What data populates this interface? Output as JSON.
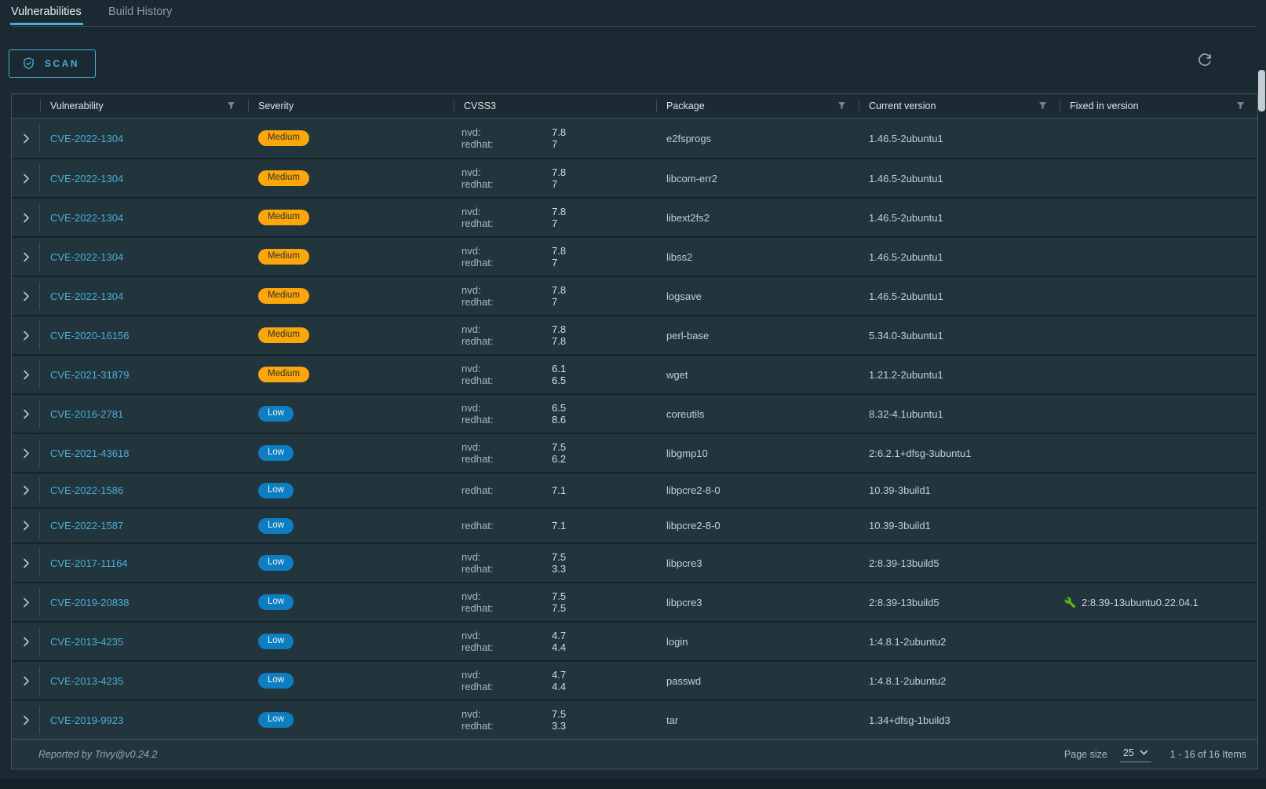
{
  "colors": {
    "accent": "#49afd9",
    "severity_medium": "#fba70b",
    "severity_low": "#0e7ec2",
    "fix_icon_green": "#5eb715"
  },
  "tabs": [
    {
      "label": "Vulnerabilities",
      "active": true
    },
    {
      "label": "Build History",
      "active": false
    }
  ],
  "toolbar": {
    "scan_label": "SCAN"
  },
  "table": {
    "columns": [
      {
        "label": "Vulnerability",
        "filter": true
      },
      {
        "label": "Severity",
        "filter": false
      },
      {
        "label": "CVSS3",
        "filter": false
      },
      {
        "label": "Package",
        "filter": true
      },
      {
        "label": "Current version",
        "filter": true
      },
      {
        "label": "Fixed in version",
        "filter": true
      }
    ],
    "rows": [
      {
        "cve": "CVE-2022-1304",
        "severity": "Medium",
        "cvss": [
          {
            "source": "nvd:",
            "score": "7.8"
          },
          {
            "source": "redhat:",
            "score": "7"
          }
        ],
        "package": "e2fsprogs",
        "current_version": "1.46.5-2ubuntu1",
        "fixed_in_version": ""
      },
      {
        "cve": "CVE-2022-1304",
        "severity": "Medium",
        "cvss": [
          {
            "source": "nvd:",
            "score": "7.8"
          },
          {
            "source": "redhat:",
            "score": "7"
          }
        ],
        "package": "libcom-err2",
        "current_version": "1.46.5-2ubuntu1",
        "fixed_in_version": ""
      },
      {
        "cve": "CVE-2022-1304",
        "severity": "Medium",
        "cvss": [
          {
            "source": "nvd:",
            "score": "7.8"
          },
          {
            "source": "redhat:",
            "score": "7"
          }
        ],
        "package": "libext2fs2",
        "current_version": "1.46.5-2ubuntu1",
        "fixed_in_version": ""
      },
      {
        "cve": "CVE-2022-1304",
        "severity": "Medium",
        "cvss": [
          {
            "source": "nvd:",
            "score": "7.8"
          },
          {
            "source": "redhat:",
            "score": "7"
          }
        ],
        "package": "libss2",
        "current_version": "1.46.5-2ubuntu1",
        "fixed_in_version": ""
      },
      {
        "cve": "CVE-2022-1304",
        "severity": "Medium",
        "cvss": [
          {
            "source": "nvd:",
            "score": "7.8"
          },
          {
            "source": "redhat:",
            "score": "7"
          }
        ],
        "package": "logsave",
        "current_version": "1.46.5-2ubuntu1",
        "fixed_in_version": ""
      },
      {
        "cve": "CVE-2020-16156",
        "severity": "Medium",
        "cvss": [
          {
            "source": "nvd:",
            "score": "7.8"
          },
          {
            "source": "redhat:",
            "score": "7.8"
          }
        ],
        "package": "perl-base",
        "current_version": "5.34.0-3ubuntu1",
        "fixed_in_version": ""
      },
      {
        "cve": "CVE-2021-31879",
        "severity": "Medium",
        "cvss": [
          {
            "source": "nvd:",
            "score": "6.1"
          },
          {
            "source": "redhat:",
            "score": "6.5"
          }
        ],
        "package": "wget",
        "current_version": "1.21.2-2ubuntu1",
        "fixed_in_version": ""
      },
      {
        "cve": "CVE-2016-2781",
        "severity": "Low",
        "cvss": [
          {
            "source": "nvd:",
            "score": "6.5"
          },
          {
            "source": "redhat:",
            "score": "8.6"
          }
        ],
        "package": "coreutils",
        "current_version": "8.32-4.1ubuntu1",
        "fixed_in_version": ""
      },
      {
        "cve": "CVE-2021-43618",
        "severity": "Low",
        "cvss": [
          {
            "source": "nvd:",
            "score": "7.5"
          },
          {
            "source": "redhat:",
            "score": "6.2"
          }
        ],
        "package": "libgmp10",
        "current_version": "2:6.2.1+dfsg-3ubuntu1",
        "fixed_in_version": ""
      },
      {
        "cve": "CVE-2022-1586",
        "severity": "Low",
        "cvss": [
          {
            "source": "redhat:",
            "score": "7.1"
          }
        ],
        "package": "libpcre2-8-0",
        "current_version": "10.39-3build1",
        "fixed_in_version": ""
      },
      {
        "cve": "CVE-2022-1587",
        "severity": "Low",
        "cvss": [
          {
            "source": "redhat:",
            "score": "7.1"
          }
        ],
        "package": "libpcre2-8-0",
        "current_version": "10.39-3build1",
        "fixed_in_version": ""
      },
      {
        "cve": "CVE-2017-11164",
        "severity": "Low",
        "cvss": [
          {
            "source": "nvd:",
            "score": "7.5"
          },
          {
            "source": "redhat:",
            "score": "3.3"
          }
        ],
        "package": "libpcre3",
        "current_version": "2:8.39-13build5",
        "fixed_in_version": ""
      },
      {
        "cve": "CVE-2019-20838",
        "severity": "Low",
        "cvss": [
          {
            "source": "nvd:",
            "score": "7.5"
          },
          {
            "source": "redhat:",
            "score": "7.5"
          }
        ],
        "package": "libpcre3",
        "current_version": "2:8.39-13build5",
        "fixed_in_version": "2:8.39-13ubuntu0.22.04.1"
      },
      {
        "cve": "CVE-2013-4235",
        "severity": "Low",
        "cvss": [
          {
            "source": "nvd:",
            "score": "4.7"
          },
          {
            "source": "redhat:",
            "score": "4.4"
          }
        ],
        "package": "login",
        "current_version": "1:4.8.1-2ubuntu2",
        "fixed_in_version": ""
      },
      {
        "cve": "CVE-2013-4235",
        "severity": "Low",
        "cvss": [
          {
            "source": "nvd:",
            "score": "4.7"
          },
          {
            "source": "redhat:",
            "score": "4.4"
          }
        ],
        "package": "passwd",
        "current_version": "1:4.8.1-2ubuntu2",
        "fixed_in_version": ""
      },
      {
        "cve": "CVE-2019-9923",
        "severity": "Low",
        "cvss": [
          {
            "source": "nvd:",
            "score": "7.5"
          },
          {
            "source": "redhat:",
            "score": "3.3"
          }
        ],
        "package": "tar",
        "current_version": "1.34+dfsg-1build3",
        "fixed_in_version": ""
      }
    ]
  },
  "footer": {
    "report_note": "Reported by Trivy@v0.24.2",
    "page_size_label": "Page size",
    "page_size_value": "25",
    "items_range": "1 - 16 of 16 Items"
  }
}
